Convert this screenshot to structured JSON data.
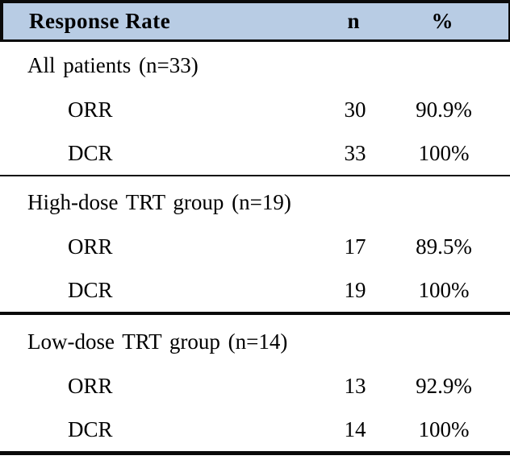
{
  "table": {
    "header": {
      "col1": "Response Rate",
      "col2": "n",
      "col3": "%"
    },
    "sections": [
      {
        "label": "All patients (n=33)",
        "rows": [
          {
            "label": "ORR",
            "n": "30",
            "pct": "90.9%"
          },
          {
            "label": "DCR",
            "n": "33",
            "pct": "100%"
          }
        ]
      },
      {
        "label": "High-dose TRT group (n=19)",
        "rows": [
          {
            "label": "ORR",
            "n": "17",
            "pct": "89.5%"
          },
          {
            "label": "DCR",
            "n": "19",
            "pct": "100%"
          }
        ]
      },
      {
        "label": "Low-dose TRT group (n=14)",
        "rows": [
          {
            "label": "ORR",
            "n": "13",
            "pct": "92.9%"
          },
          {
            "label": "DCR",
            "n": "14",
            "pct": "100%"
          }
        ]
      }
    ],
    "colors": {
      "header_background": "#b8cce4",
      "border": "#0a0a0a",
      "text": "#000000"
    }
  },
  "chart_data": {
    "type": "table",
    "title": "Response Rate",
    "columns": [
      "Response Rate",
      "n",
      "%"
    ],
    "groups": [
      {
        "group": "All patients (n=33)",
        "rows": [
          [
            "ORR",
            30,
            "90.9%"
          ],
          [
            "DCR",
            33,
            "100%"
          ]
        ]
      },
      {
        "group": "High-dose TRT group (n=19)",
        "rows": [
          [
            "ORR",
            17,
            "89.5%"
          ],
          [
            "DCR",
            19,
            "100%"
          ]
        ]
      },
      {
        "group": "Low-dose TRT group (n=14)",
        "rows": [
          [
            "ORR",
            13,
            "92.9%"
          ],
          [
            "DCR",
            14,
            "100%"
          ]
        ]
      }
    ]
  }
}
